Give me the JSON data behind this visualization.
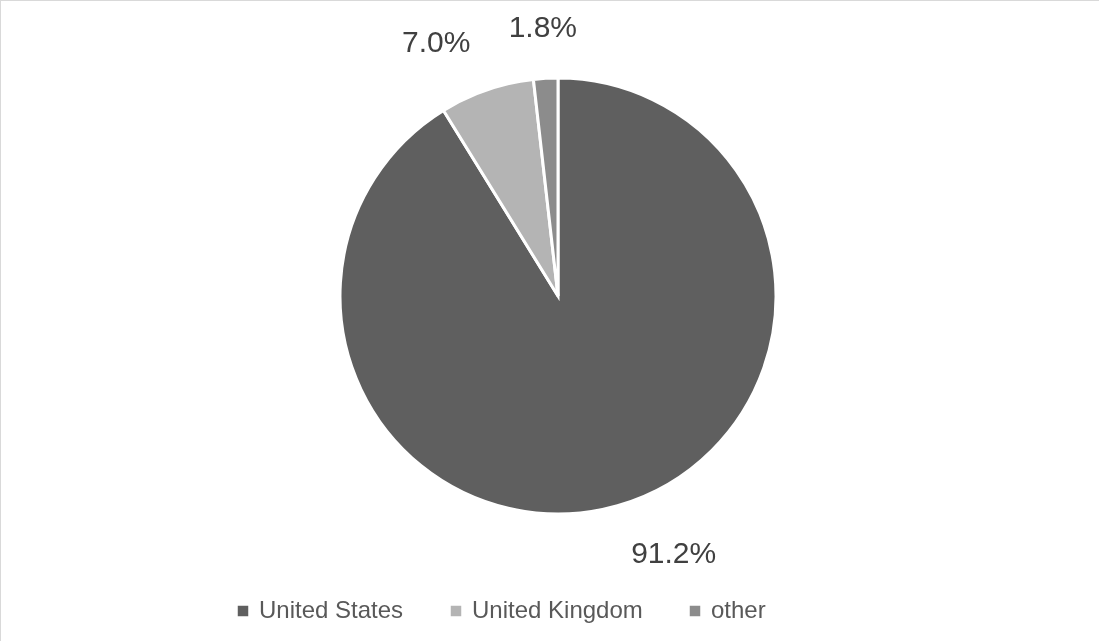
{
  "chart_data": {
    "type": "pie",
    "categories": [
      "United States",
      "United Kingdom",
      "other"
    ],
    "values": [
      91.2,
      7.0,
      1.8
    ],
    "colors": [
      "#5f5f5f",
      "#b4b4b4",
      "#8c8c8c"
    ],
    "value_labels": [
      "91.2%",
      "7.0%",
      "1.8%"
    ],
    "legend": "bottom"
  }
}
